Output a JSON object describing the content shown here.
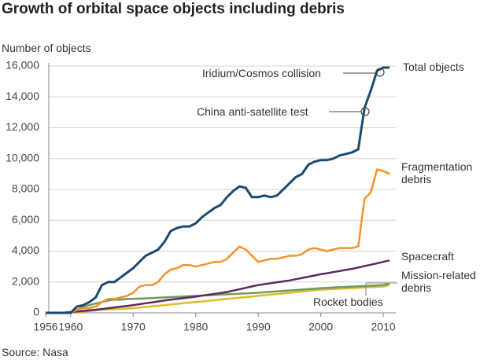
{
  "chart_data": {
    "type": "line",
    "title": "Growth of orbital space objects including debris",
    "y_label": "Number of objects",
    "source": "Source: Nasa",
    "x": [
      1956,
      1957,
      1958,
      1959,
      1960,
      1961,
      1962,
      1963,
      1964,
      1965,
      1966,
      1967,
      1968,
      1969,
      1970,
      1971,
      1972,
      1973,
      1974,
      1975,
      1976,
      1977,
      1978,
      1979,
      1980,
      1981,
      1982,
      1983,
      1984,
      1985,
      1986,
      1987,
      1988,
      1989,
      1990,
      1991,
      1992,
      1993,
      1994,
      1995,
      1996,
      1997,
      1998,
      1999,
      2000,
      2001,
      2002,
      2003,
      2004,
      2005,
      2006,
      2007,
      2008,
      2009,
      2010,
      2011
    ],
    "xlim": [
      1956,
      2012
    ],
    "xticks": [
      1956,
      1960,
      1970,
      1980,
      1990,
      2000,
      2010
    ],
    "ylim": [
      0,
      16000
    ],
    "yticks": [
      0,
      {
        "value": 2000,
        "label": "2,000"
      },
      {
        "value": 4000,
        "label": "4,000"
      },
      {
        "value": 6000,
        "label": "6,000"
      },
      {
        "value": 8000,
        "label": "8,000"
      },
      {
        "value": 10000,
        "label": "10,000"
      },
      {
        "value": 12000,
        "label": "12,000"
      },
      {
        "value": 14000,
        "label": "14,000"
      },
      {
        "value": 16000,
        "label": "16,000"
      }
    ],
    "grid": true,
    "series": [
      {
        "name": "Total objects",
        "color": "#1b4a72",
        "values": [
          0,
          0,
          0,
          0,
          0,
          400,
          500,
          700,
          1000,
          1800,
          2000,
          2000,
          2300,
          2600,
          2900,
          3300,
          3700,
          3900,
          4100,
          4600,
          5300,
          5500,
          5600,
          5600,
          5800,
          6200,
          6500,
          6800,
          7000,
          7500,
          7900,
          8200,
          8100,
          7500,
          7500,
          7600,
          7500,
          7600,
          8000,
          8400,
          8800,
          9000,
          9600,
          9800,
          9900,
          9900,
          10000,
          10200,
          10300,
          10400,
          10600,
          13300,
          14400,
          15700,
          15900,
          15900
        ]
      },
      {
        "name": "Fragmentation debris",
        "color": "#f5922a",
        "values": [
          0,
          0,
          0,
          0,
          0,
          200,
          300,
          300,
          400,
          700,
          900,
          900,
          1000,
          1100,
          1300,
          1700,
          1800,
          1800,
          2000,
          2500,
          2800,
          2900,
          3100,
          3100,
          3000,
          3100,
          3200,
          3300,
          3300,
          3500,
          3900,
          4300,
          4100,
          3700,
          3300,
          3400,
          3500,
          3500,
          3600,
          3700,
          3700,
          3800,
          4100,
          4200,
          4100,
          4000,
          4100,
          4200,
          4200,
          4200,
          4300,
          7400,
          7800,
          9300,
          9200,
          9000
        ]
      },
      {
        "name": "Spacecraft",
        "color": "#5e2a5e",
        "values": [
          0,
          0,
          10,
          20,
          50,
          80,
          120,
          160,
          200,
          250,
          300,
          350,
          400,
          450,
          500,
          560,
          620,
          680,
          740,
          800,
          850,
          900,
          950,
          1000,
          1050,
          1110,
          1170,
          1230,
          1290,
          1350,
          1440,
          1530,
          1620,
          1710,
          1800,
          1860,
          1920,
          1980,
          2040,
          2100,
          2180,
          2260,
          2340,
          2420,
          2500,
          2570,
          2640,
          2710,
          2780,
          2850,
          2940,
          3030,
          3120,
          3210,
          3300,
          3400
        ]
      },
      {
        "name": "Mission-related debris",
        "color": "#6f9a5e",
        "values": [
          0,
          0,
          0,
          0,
          0,
          200,
          400,
          500,
          600,
          700,
          800,
          850,
          850,
          900,
          900,
          920,
          940,
          960,
          980,
          1000,
          1020,
          1040,
          1060,
          1080,
          1100,
          1120,
          1140,
          1160,
          1180,
          1200,
          1220,
          1240,
          1260,
          1280,
          1300,
          1330,
          1360,
          1390,
          1420,
          1450,
          1480,
          1510,
          1540,
          1570,
          1600,
          1620,
          1640,
          1660,
          1680,
          1700,
          1720,
          1740,
          1760,
          1780,
          1800,
          1900
        ]
      },
      {
        "name": "Rocket bodies",
        "color": "#dcbc2c",
        "values": [
          0,
          0,
          0,
          0,
          0,
          40,
          80,
          120,
          160,
          200,
          220,
          240,
          260,
          280,
          300,
          340,
          380,
          420,
          460,
          500,
          540,
          580,
          620,
          660,
          700,
          740,
          780,
          820,
          860,
          900,
          940,
          980,
          1020,
          1060,
          1100,
          1140,
          1180,
          1220,
          1260,
          1300,
          1340,
          1380,
          1420,
          1460,
          1500,
          1520,
          1540,
          1560,
          1580,
          1600,
          1620,
          1640,
          1660,
          1680,
          1700,
          1800
        ]
      }
    ],
    "annotations": [
      "Iridium/Cosmos collision",
      "China anti-satellite test"
    ]
  }
}
